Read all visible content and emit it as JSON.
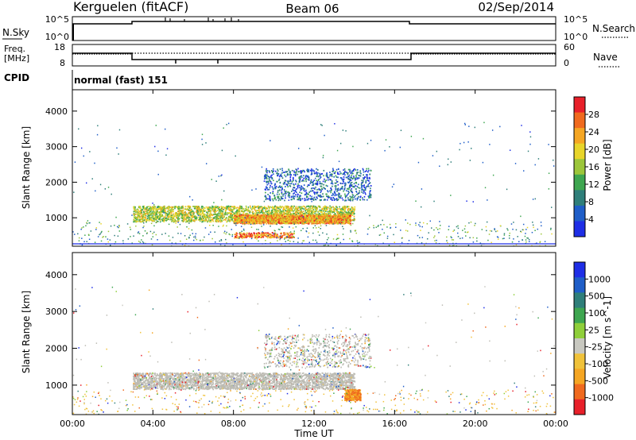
{
  "header": {
    "station": "Kerguelen (fitACF)",
    "beam": "Beam 06",
    "date": "02/Sep/2014"
  },
  "status_panels": {
    "nsky_label": "N.Sky",
    "nsky_ticks": [
      "10^5",
      "10^0"
    ],
    "nsearch_label": "N.Search",
    "freq_label_top": "Freq.",
    "freq_label_bottom": "[MHz]",
    "freq_ticks": [
      "18",
      "8"
    ],
    "nave_label": "Nave",
    "nave_ticks": [
      "60",
      "0"
    ],
    "cpid_label": "CPID",
    "cpid_value": "normal (fast) 151"
  },
  "colors": {
    "power_scale": [
      "#1e2ee6",
      "#1f5ec8",
      "#2f7f7a",
      "#3ea650",
      "#9cc63a",
      "#e8d52a",
      "#f5a623",
      "#f06a1e",
      "#e8202a"
    ],
    "velocity_scale": [
      "#e8202a",
      "#f06a1e",
      "#f5a623",
      "#f0c23a",
      "#c8c8c0",
      "#8fcf3a",
      "#3ea650",
      "#2f7f7a",
      "#1f5ec8",
      "#1e2ee6"
    ],
    "ground_scatter": "#bdbcb4"
  },
  "chart_data": [
    {
      "type": "heatmap",
      "ylabel": "Slant Range [km]",
      "x_range_hours": [
        0,
        24
      ],
      "ylim": [
        200,
        4600
      ],
      "y_ticks": [
        "1000",
        "2000",
        "3000",
        "4000"
      ],
      "colorbar": {
        "label": "Power [dB]",
        "ticks": [
          "4",
          "8",
          "12",
          "16",
          "20",
          "24",
          "28"
        ],
        "range": [
          0,
          30
        ]
      },
      "features": [
        {
          "desc": "main band",
          "x_hours": [
            3.0,
            14.0
          ],
          "y_km": [
            900,
            1350
          ],
          "value_db": 16
        },
        {
          "desc": "core",
          "x_hours": [
            8.0,
            13.8
          ],
          "y_km": [
            850,
            1100
          ],
          "value_db": 22
        },
        {
          "desc": "upper tail",
          "x_hours": [
            9.5,
            14.8
          ],
          "y_km": [
            1500,
            2400
          ],
          "value_db": 6
        },
        {
          "desc": "lower patch",
          "x_hours": [
            8.0,
            11.0
          ],
          "y_km": [
            450,
            600
          ],
          "value_db": 24
        }
      ]
    },
    {
      "type": "heatmap",
      "ylabel": "Slant Range [km]",
      "xlabel": "Time UT",
      "x_ticks": [
        "00:00",
        "04:00",
        "08:00",
        "12:00",
        "16:00",
        "20:00",
        "00:00"
      ],
      "x_range_hours": [
        0,
        24
      ],
      "ylim": [
        200,
        4600
      ],
      "y_ticks": [
        "1000",
        "2000",
        "3000",
        "4000"
      ],
      "colorbar": {
        "label": "Velocity [m s^-1]",
        "ticks": [
          "1000",
          "500",
          "100",
          "25",
          "-25",
          "-100",
          "-500",
          "-1000"
        ],
        "range": [
          -1000,
          1000
        ]
      },
      "features": [
        {
          "desc": "ground scatter band",
          "x_hours": [
            3.0,
            14.0
          ],
          "y_km": [
            900,
            1350
          ],
          "value_ms": 0
        },
        {
          "desc": "receding patch",
          "x_hours": [
            13.5,
            14.3
          ],
          "y_km": [
            600,
            900
          ],
          "value_ms": -300
        }
      ]
    }
  ]
}
